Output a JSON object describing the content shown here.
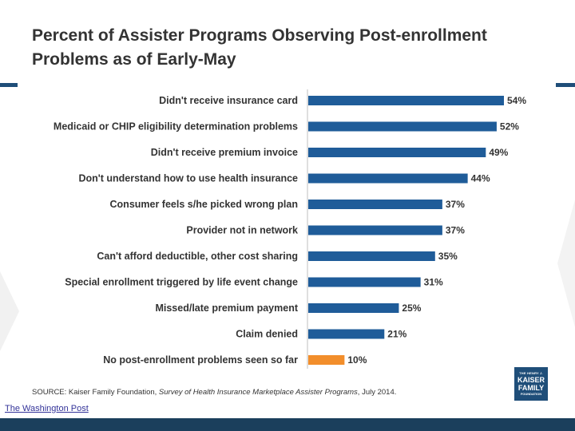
{
  "title_line1": "Percent of Assister Programs Observing Post-enrollment",
  "title_line2": "Problems as of Early-May",
  "source_prefix": "SOURCE: Kaiser Family Foundation, ",
  "source_italic": "Survey of Health Insurance Marketplace Assister Programs",
  "source_suffix": ", July 2014.",
  "credit": "The Washington Post",
  "logo": {
    "line1": "THE HENRY J.",
    "line2": "KAISER",
    "line3": "FAMILY",
    "line4": "FOUNDATION"
  },
  "colors": {
    "bar": "#1f5c99",
    "highlight": "#f28e2b",
    "text": "#333333"
  },
  "chart_data": {
    "type": "bar",
    "orientation": "horizontal",
    "title": "Percent of Assister Programs Observing Post-enrollment Problems as of Early-May",
    "categories": [
      "Didn't receive insurance card",
      "Medicaid or CHIP eligibility determination problems",
      "Didn't receive premium invoice",
      "Don't understand how to use health insurance",
      "Consumer feels s/he picked wrong plan",
      "Provider not in network",
      "Can't afford deductible, other cost sharing",
      "Special enrollment triggered by life event change",
      "Missed/late premium payment",
      "Claim denied",
      "No post-enrollment problems seen so far"
    ],
    "values": [
      54,
      52,
      49,
      44,
      37,
      37,
      35,
      31,
      25,
      21,
      10
    ],
    "value_labels": [
      "54%",
      "52%",
      "49%",
      "44%",
      "37%",
      "37%",
      "35%",
      "31%",
      "25%",
      "21%",
      "10%"
    ],
    "highlight_index": 10,
    "xlim": [
      0,
      54
    ]
  }
}
